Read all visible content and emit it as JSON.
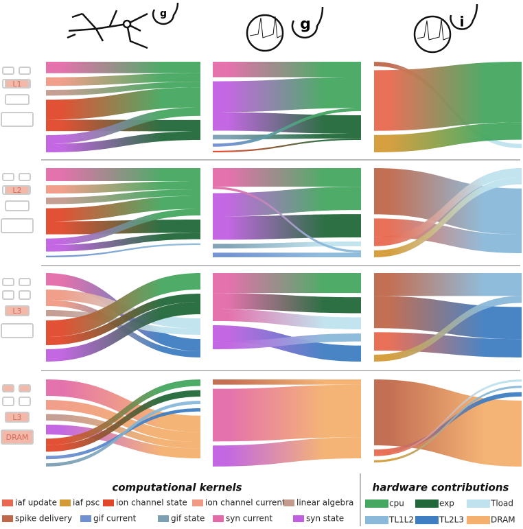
{
  "icons": [
    "g",
    "g",
    "i"
  ],
  "levels": [
    [
      "L1"
    ],
    [
      "L2"
    ],
    [
      "L3"
    ],
    [
      "L3",
      "DRAM"
    ]
  ],
  "legend_titles": [
    "computational kernels",
    "hardware contributions"
  ],
  "kernels": [
    {
      "name": "iaf update",
      "color": "#e8694f"
    },
    {
      "name": "iaf psc",
      "color": "#d49a35"
    },
    {
      "name": "ion channel state",
      "color": "#e0482a"
    },
    {
      "name": "ion channel current",
      "color": "#f09a84"
    },
    {
      "name": "linear algebra",
      "color": "#c39a8e"
    },
    {
      "name": "spike delivery",
      "color": "#c0674a"
    },
    {
      "name": "gif current",
      "color": "#6f8fd0"
    },
    {
      "name": "gif state",
      "color": "#7c9fb2"
    },
    {
      "name": "syn current",
      "color": "#e36aa8"
    },
    {
      "name": "syn state",
      "color": "#c060e0"
    }
  ],
  "hardware": [
    {
      "name": "cpu",
      "color": "#45a760"
    },
    {
      "name": "exp",
      "color": "#22683a"
    },
    {
      "name": "Tload",
      "color": "#bfe2ee"
    },
    {
      "name": "TL1L2",
      "color": "#8ab9da"
    },
    {
      "name": "TL2L3",
      "color": "#3f7ec2"
    },
    {
      "name": "DRAM",
      "color": "#f4b06e"
    }
  ],
  "panels": [
    {
      "flows": [
        [
          8,
          0,
          8
        ],
        [
          3,
          0,
          6
        ],
        [
          4,
          0,
          4
        ],
        [
          2,
          0,
          14
        ],
        [
          2,
          1,
          8
        ],
        [
          9,
          0,
          6
        ],
        [
          9,
          1,
          6
        ]
      ]
    },
    {
      "flows": [
        [
          8,
          0,
          10
        ],
        [
          9,
          0,
          20
        ],
        [
          9,
          1,
          12
        ],
        [
          7,
          1,
          3
        ],
        [
          6,
          0,
          2
        ],
        [
          2,
          1,
          1
        ]
      ]
    },
    {
      "flows": [
        [
          5,
          2,
          2
        ],
        [
          0,
          0,
          28
        ],
        [
          1,
          0,
          8
        ]
      ]
    },
    {
      "flows": [
        [
          8,
          0,
          8
        ],
        [
          3,
          0,
          5
        ],
        [
          4,
          0,
          4
        ],
        [
          2,
          0,
          8
        ],
        [
          2,
          1,
          8
        ],
        [
          9,
          0,
          4
        ],
        [
          9,
          1,
          4
        ],
        [
          6,
          3,
          1
        ]
      ]
    },
    {
      "flows": [
        [
          8,
          0,
          8
        ],
        [
          9,
          0,
          10
        ],
        [
          9,
          1,
          10
        ],
        [
          7,
          2,
          2
        ],
        [
          6,
          3,
          2
        ],
        [
          8,
          3,
          1
        ]
      ]
    },
    {
      "flows": [
        [
          5,
          3,
          20
        ],
        [
          0,
          3,
          8
        ],
        [
          0,
          2,
          4
        ],
        [
          1,
          2,
          3
        ]
      ]
    },
    {
      "flows": [
        [
          8,
          4,
          6
        ],
        [
          3,
          2,
          5
        ],
        [
          3,
          4,
          3
        ],
        [
          4,
          2,
          3
        ],
        [
          2,
          0,
          8
        ],
        [
          2,
          1,
          4
        ],
        [
          9,
          1,
          6
        ]
      ]
    },
    {
      "flows": [
        [
          8,
          0,
          10
        ],
        [
          8,
          1,
          8
        ],
        [
          8,
          2,
          6
        ],
        [
          9,
          4,
          8
        ],
        [
          9,
          3,
          4
        ]
      ]
    },
    {
      "flows": [
        [
          5,
          3,
          10
        ],
        [
          5,
          4,
          14
        ],
        [
          0,
          4,
          8
        ],
        [
          1,
          3,
          3
        ]
      ]
    },
    {
      "flows": [
        [
          8,
          5,
          10
        ],
        [
          3,
          5,
          6
        ],
        [
          4,
          5,
          4
        ],
        [
          9,
          5,
          6
        ],
        [
          2,
          0,
          4
        ],
        [
          2,
          1,
          4
        ],
        [
          6,
          4,
          2
        ],
        [
          7,
          3,
          2
        ]
      ]
    },
    {
      "flows": [
        [
          5,
          5,
          2
        ],
        [
          8,
          5,
          20
        ],
        [
          9,
          5,
          8
        ]
      ]
    },
    {
      "flows": [
        [
          5,
          5,
          30
        ],
        [
          0,
          4,
          2
        ],
        [
          0,
          2,
          1
        ],
        [
          1,
          3,
          1
        ]
      ]
    }
  ]
}
